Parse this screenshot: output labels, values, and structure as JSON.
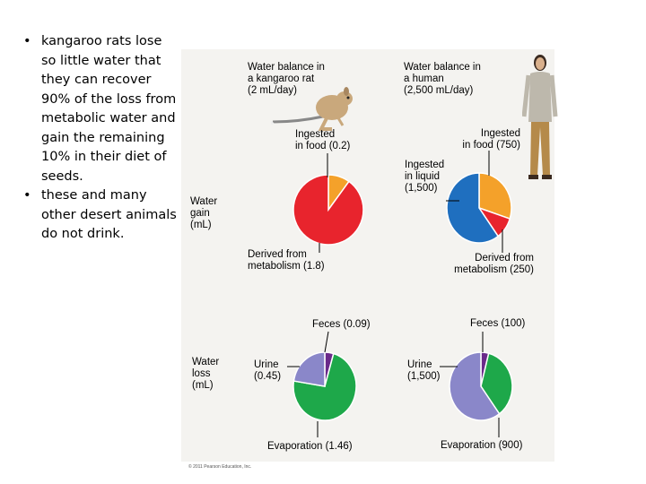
{
  "bullets": [
    "kangaroo rats lose so little water that they can recover 90% of the loss from metabolic water and gain the remaining 10% in their diet of seeds.",
    "these and many other desert animals do not drink."
  ],
  "figure": {
    "kangaroo_header": "Water balance in\na kangaroo rat\n(2 mL/day)",
    "human_header": "Water balance in\na human\n(2,500 mL/day)",
    "gain_label": "Water\ngain\n(mL)",
    "loss_label": "Water\nloss\n(mL)",
    "labels": {
      "rat_food": "Ingested\nin food (0.2)",
      "rat_metabolism": "Derived from\nmetabolism (1.8)",
      "human_food": "Ingested\nin food (750)",
      "human_liquid": "Ingested\nin liquid\n(1,500)",
      "human_metabolism": "Derived from\nmetabolism (250)",
      "rat_feces": "Feces (0.09)",
      "rat_urine": "Urine\n(0.45)",
      "rat_evap": "Evaporation (1.46)",
      "human_feces": "Feces (100)",
      "human_urine": "Urine\n(1,500)",
      "human_evap": "Evaporation (900)"
    },
    "copyright": "© 2011 Pearson Education, Inc."
  },
  "chart_data": [
    {
      "type": "pie",
      "group": "water gain",
      "subject": "kangaroo rat",
      "slices": [
        {
          "label": "Ingested in food",
          "value": 0.2,
          "color": "#f4a12a"
        },
        {
          "label": "Derived from metabolism",
          "value": 1.8,
          "color": "#e8242d"
        }
      ]
    },
    {
      "type": "pie",
      "group": "water gain",
      "subject": "human",
      "slices": [
        {
          "label": "Ingested in food",
          "value": 750,
          "color": "#f4a12a"
        },
        {
          "label": "Derived from metabolism",
          "value": 250,
          "color": "#e8242d"
        },
        {
          "label": "Ingested in liquid",
          "value": 1500,
          "color": "#1f6fbf"
        }
      ]
    },
    {
      "type": "pie",
      "group": "water loss",
      "subject": "kangaroo rat",
      "slices": [
        {
          "label": "Feces",
          "value": 0.09,
          "color": "#6a2a8a"
        },
        {
          "label": "Evaporation",
          "value": 1.46,
          "color": "#1ea84a"
        },
        {
          "label": "Urine",
          "value": 0.45,
          "color": "#8a87c9"
        }
      ]
    },
    {
      "type": "pie",
      "group": "water loss",
      "subject": "human",
      "slices": [
        {
          "label": "Feces",
          "value": 100,
          "color": "#6a2a8a"
        },
        {
          "label": "Evaporation",
          "value": 900,
          "color": "#1ea84a"
        },
        {
          "label": "Urine",
          "value": 1500,
          "color": "#8a87c9"
        }
      ]
    }
  ]
}
